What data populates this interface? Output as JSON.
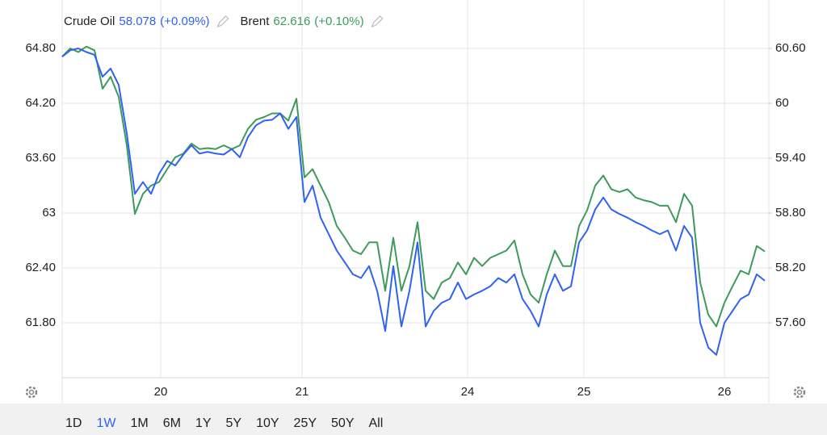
{
  "chart_data": {
    "type": "line",
    "x": [
      0,
      1,
      2,
      3,
      4,
      5,
      6,
      7,
      8,
      9,
      10,
      11,
      12,
      13,
      14,
      15,
      16,
      17,
      18,
      19,
      20,
      21,
      22,
      23,
      24,
      25,
      26,
      27,
      28,
      29,
      30,
      31,
      32,
      33,
      34,
      35,
      36,
      37,
      38,
      39,
      40,
      41,
      42,
      43,
      44,
      45,
      46,
      47,
      48,
      49,
      50,
      51,
      52,
      53,
      54,
      55,
      56,
      57,
      58,
      59,
      60,
      61,
      62,
      63,
      64,
      65,
      66,
      67,
      68,
      69,
      70,
      71,
      72,
      73,
      74,
      75,
      76,
      77,
      78,
      79,
      80,
      81,
      82,
      83,
      84,
      85,
      86,
      87
    ],
    "xlim": [
      0,
      87.5
    ],
    "xticks": [
      {
        "value": 12.2,
        "label": "20"
      },
      {
        "value": 29.7,
        "label": "21"
      },
      {
        "value": 50.2,
        "label": "24"
      },
      {
        "value": 64.6,
        "label": "25"
      },
      {
        "value": 82.0,
        "label": "26"
      }
    ],
    "ylim": [
      61.2,
      65.2
    ],
    "yticks": [
      {
        "value": 64.8,
        "label": "64.80"
      },
      {
        "value": 64.2,
        "label": "64.20"
      },
      {
        "value": 63.6,
        "label": "63.60"
      },
      63,
      {
        "value": 62.4,
        "label": "62.40"
      },
      {
        "value": 61.8,
        "label": "61.80"
      }
    ],
    "y2lim": [
      57.0,
      61.0
    ],
    "y2ticks": [
      {
        "value": 60.6,
        "label": "60.60"
      },
      60,
      {
        "value": 59.4,
        "label": "59.40"
      },
      {
        "value": 58.8,
        "label": "58.80"
      },
      {
        "value": 58.2,
        "label": "58.20"
      },
      {
        "value": 57.6,
        "label": "57.60"
      }
    ],
    "grid": true,
    "series": [
      {
        "name": "Crude Oil",
        "last": "58.078",
        "change": "(+0.09%)",
        "color": "#2f62f0",
        "axis": "y2",
        "values": [
          60.51,
          60.58,
          60.6,
          60.56,
          60.53,
          60.29,
          60.38,
          60.2,
          59.67,
          59.01,
          59.14,
          59.01,
          59.23,
          59.37,
          59.32,
          59.44,
          59.54,
          59.45,
          59.47,
          59.45,
          59.44,
          59.5,
          59.41,
          59.63,
          59.76,
          59.81,
          59.82,
          59.89,
          59.72,
          59.85,
          58.92,
          59.1,
          58.75,
          58.57,
          58.39,
          58.26,
          58.13,
          58.09,
          58.22,
          57.95,
          57.51,
          58.22,
          57.56,
          57.95,
          58.48,
          57.56,
          57.73,
          57.82,
          57.86,
          58.04,
          57.86,
          57.91,
          57.95,
          58.0,
          58.09,
          58.04,
          58.13,
          57.86,
          57.73,
          57.56,
          57.91,
          58.13,
          57.95,
          58.0,
          58.48,
          58.61,
          58.84,
          58.97,
          58.84,
          58.79,
          58.75,
          58.7,
          58.66,
          58.61,
          58.57,
          58.61,
          58.39,
          58.66,
          58.53,
          57.6,
          57.33,
          57.25,
          57.6,
          57.73,
          57.86,
          57.91,
          58.13,
          58.06
        ]
      },
      {
        "name": "Brent",
        "last": "62.616",
        "change": "(+0.10%)",
        "color": "#3e9a5c",
        "axis": "y",
        "values": [
          64.71,
          64.8,
          64.76,
          64.82,
          64.78,
          64.36,
          64.49,
          64.27,
          63.74,
          62.99,
          63.21,
          63.3,
          63.34,
          63.48,
          63.61,
          63.65,
          63.76,
          63.7,
          63.71,
          63.7,
          63.74,
          63.7,
          63.74,
          63.92,
          64.02,
          64.05,
          64.09,
          64.09,
          64.01,
          64.25,
          63.39,
          63.48,
          63.3,
          63.12,
          62.86,
          62.73,
          62.59,
          62.55,
          62.68,
          62.68,
          62.15,
          62.73,
          62.15,
          62.42,
          62.9,
          62.15,
          62.06,
          62.24,
          62.29,
          62.46,
          62.33,
          62.51,
          62.42,
          62.51,
          62.55,
          62.59,
          62.7,
          62.33,
          62.11,
          62.02,
          62.33,
          62.59,
          62.42,
          62.42,
          62.86,
          63.03,
          63.3,
          63.41,
          63.26,
          63.23,
          63.26,
          63.17,
          63.14,
          63.12,
          63.08,
          63.08,
          62.9,
          63.21,
          63.08,
          62.24,
          61.89,
          61.76,
          62.02,
          62.2,
          62.37,
          62.33,
          62.64,
          62.58
        ]
      }
    ],
    "range_buttons": [
      "1D",
      "1W",
      "1M",
      "6M",
      "1Y",
      "5Y",
      "10Y",
      "25Y",
      "50Y",
      "All"
    ],
    "active_range": "1W"
  }
}
